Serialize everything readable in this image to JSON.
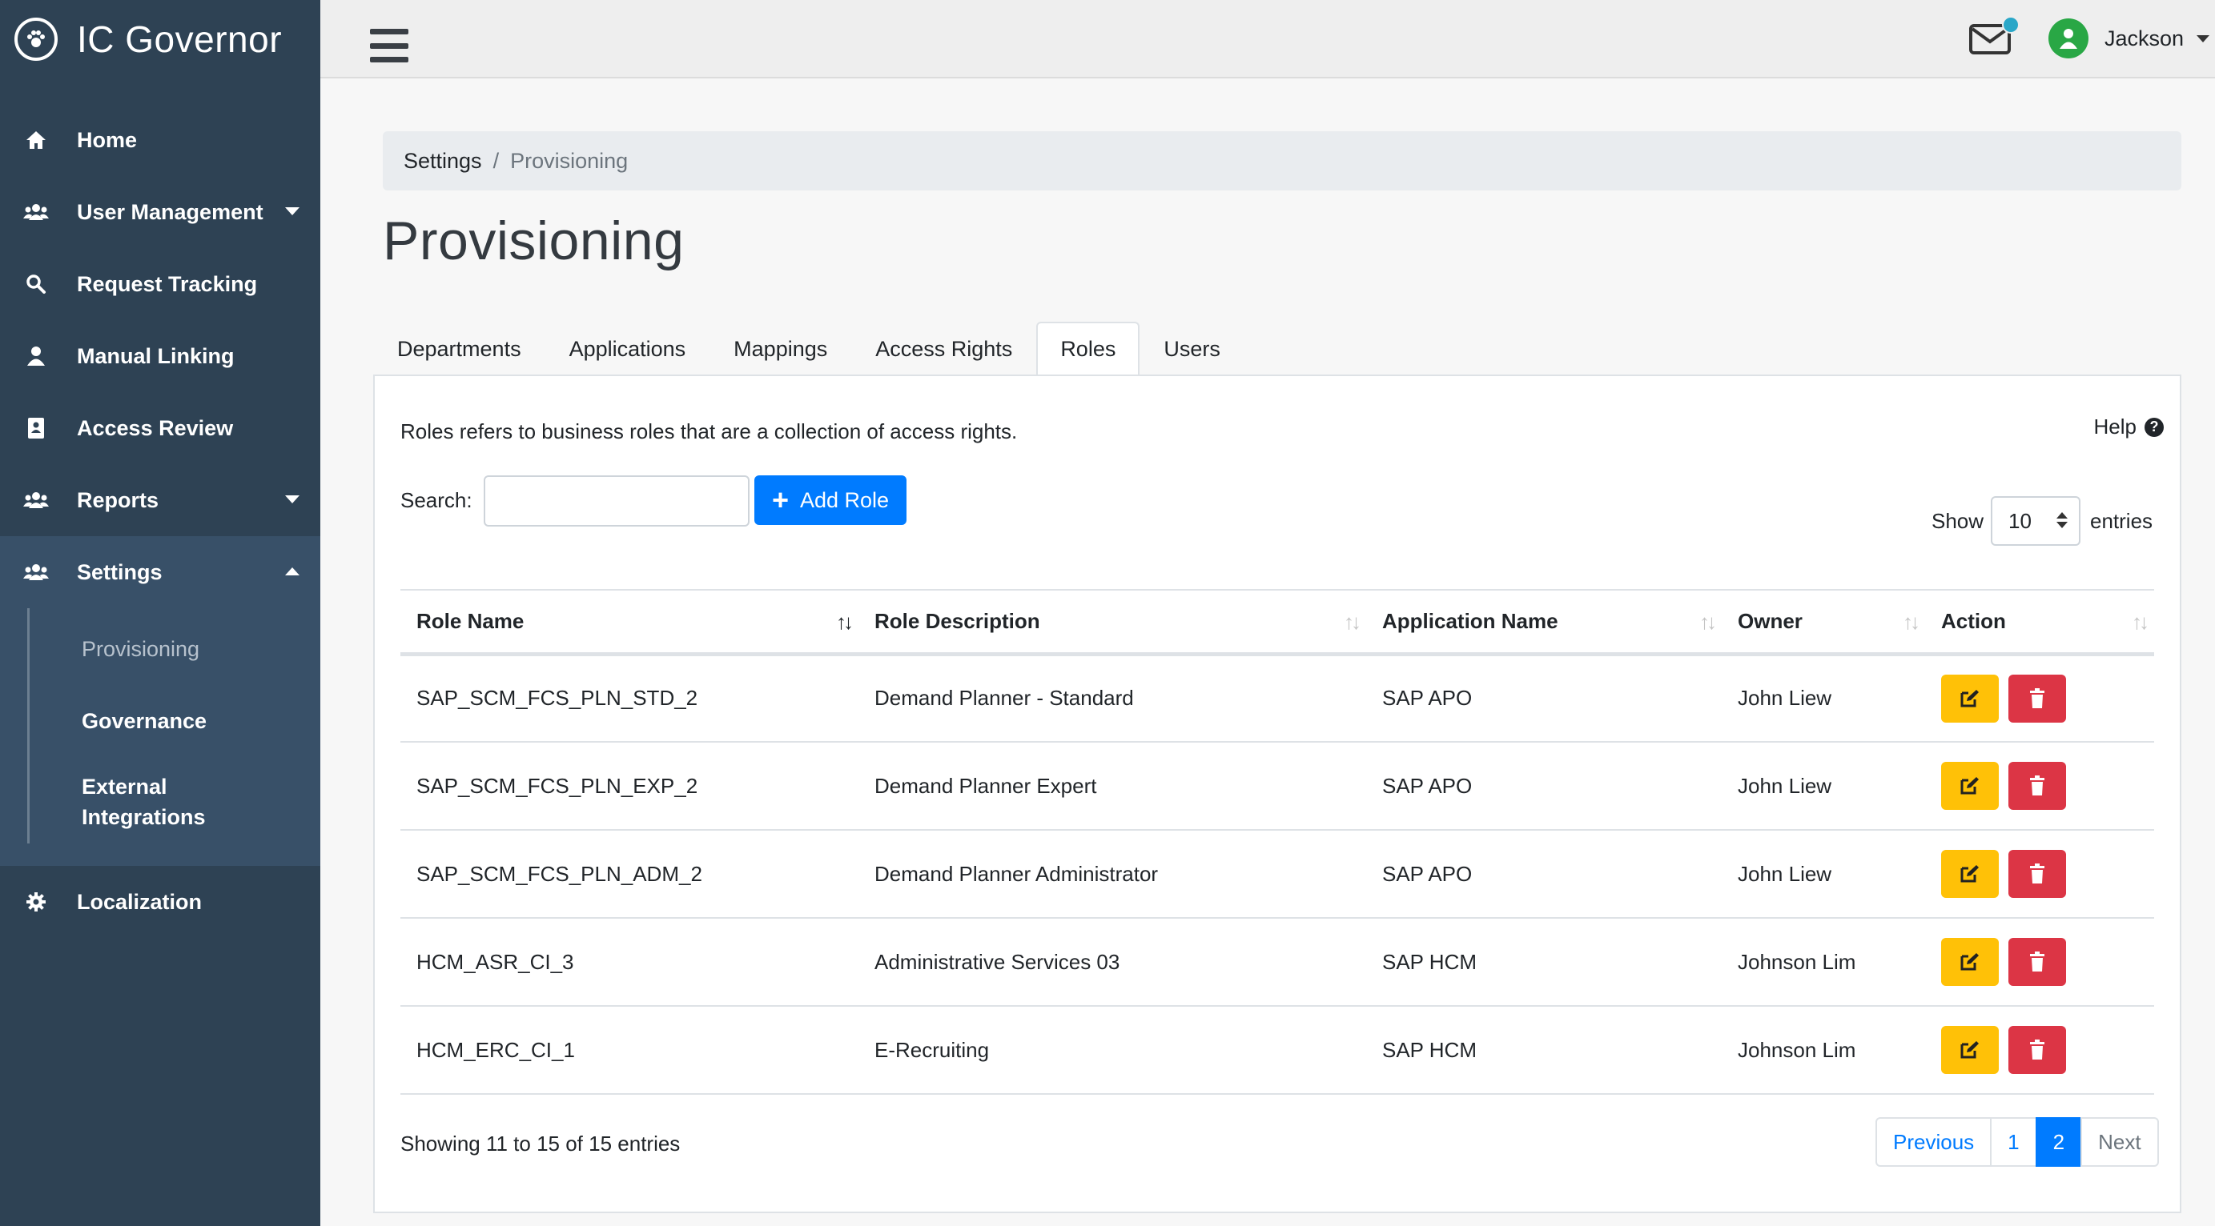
{
  "app": {
    "title": "IC Governor"
  },
  "sidebar": {
    "items": [
      {
        "label": "Home",
        "icon": "home-icon"
      },
      {
        "label": "User Management",
        "icon": "users-icon"
      },
      {
        "label": "Request Tracking",
        "icon": "search-icon"
      },
      {
        "label": "Manual Linking",
        "icon": "user-icon"
      },
      {
        "label": "Access Review",
        "icon": "id-card-icon"
      },
      {
        "label": "Reports",
        "icon": "users-icon"
      },
      {
        "label": "Settings",
        "icon": "users-icon"
      },
      {
        "label": "Localization",
        "icon": "gear-icon"
      }
    ],
    "settings_sub": [
      {
        "label": "Provisioning"
      },
      {
        "label": "Governance"
      },
      {
        "label": "External Integrations"
      }
    ]
  },
  "topbar": {
    "user_name": "Jackson",
    "notification_color": "#2aa7c8"
  },
  "breadcrumb": {
    "parent": "Settings",
    "separator": "/",
    "current": "Provisioning"
  },
  "page": {
    "title": "Provisioning"
  },
  "tabs": [
    "Departments",
    "Applications",
    "Mappings",
    "Access Rights",
    "Roles",
    "Users"
  ],
  "roles_panel": {
    "description": "Roles refers to business roles that are a collection of access rights.",
    "help_label": "Help",
    "search_label": "Search:",
    "search_value": "",
    "add_button": "Add Role",
    "show_label": "Show",
    "page_size": "10",
    "entries_label": "entries",
    "columns": [
      "Role Name",
      "Role Description",
      "Application Name",
      "Owner",
      "Action"
    ],
    "rows": [
      {
        "role": "SAP_SCM_FCS_PLN_STD_2",
        "description": "Demand Planner - Standard",
        "application": "SAP APO",
        "owner": "John Liew"
      },
      {
        "role": "SAP_SCM_FCS_PLN_EXP_2",
        "description": "Demand Planner Expert",
        "application": "SAP APO",
        "owner": "John Liew"
      },
      {
        "role": "SAP_SCM_FCS_PLN_ADM_2",
        "description": "Demand Planner Administrator",
        "application": "SAP APO",
        "owner": "John Liew"
      },
      {
        "role": "HCM_ASR_CI_3",
        "description": "Administrative Services 03",
        "application": "SAP HCM",
        "owner": "Johnson Lim"
      },
      {
        "role": "HCM_ERC_CI_1",
        "description": "E-Recruiting",
        "application": "SAP HCM",
        "owner": "Johnson Lim"
      }
    ],
    "info": "Showing 11 to 15 of 15 entries",
    "pagination": {
      "previous": "Previous",
      "pages": [
        "1",
        "2"
      ],
      "current": "2",
      "next": "Next"
    }
  },
  "colors": {
    "sidebar": "#2e4254",
    "primary": "#007bff",
    "edit": "#ffc107",
    "delete": "#dc3545",
    "avatar": "#29a745"
  }
}
